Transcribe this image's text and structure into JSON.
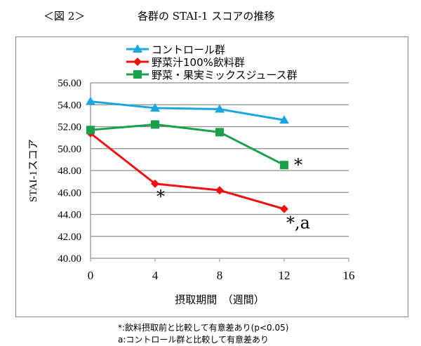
{
  "figure_label": "＜図 2＞",
  "chart_data": {
    "type": "line",
    "title": "各群の STAI-1 スコアの推移",
    "xlabel": "摂取期間　（週間）",
    "ylabel": "STAI-1スコア",
    "xlim": [
      0,
      16
    ],
    "ylim": [
      40,
      56
    ],
    "x_ticks": [
      "0",
      "4",
      "8",
      "12",
      "16"
    ],
    "y_ticks": [
      "40.00",
      "42.00",
      "44.00",
      "46.00",
      "48.00",
      "50.00",
      "52.00",
      "54.00",
      "56.00"
    ],
    "grid": "horizontal",
    "legend_position": "top",
    "x": [
      0,
      4,
      8,
      12
    ],
    "series": [
      {
        "name": "コントロール群",
        "color": "#1aa7e0",
        "marker": "triangle",
        "values": [
          54.3,
          53.7,
          53.6,
          52.6
        ]
      },
      {
        "name": "野菜汁100%飲料群",
        "color": "#ee1111",
        "marker": "diamond",
        "values": [
          51.4,
          46.8,
          46.2,
          44.5
        ]
      },
      {
        "name": "野菜・果実ミックスジュース群",
        "color": "#1aa04a",
        "marker": "square",
        "values": [
          51.7,
          52.2,
          51.5,
          48.5
        ]
      }
    ],
    "annotations": [
      {
        "text": "*",
        "series": 1,
        "x": 4
      },
      {
        "text": "*",
        "series": 2,
        "x": 12
      },
      {
        "text": "*,a",
        "series": 1,
        "x": 12
      }
    ]
  },
  "notes": [
    "*:飲料摂取前と比較して有意差あり(p<0.05)",
    "a:コントロール群と比較して有意差あり"
  ]
}
